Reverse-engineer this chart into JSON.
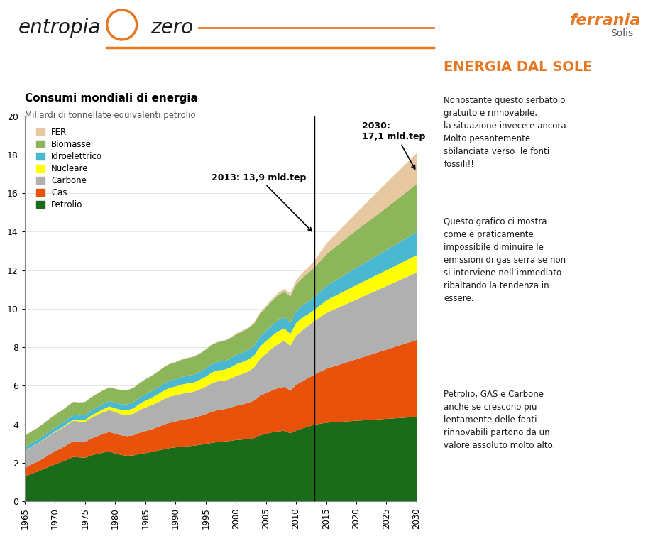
{
  "title": "Consumi mondiali di energia",
  "subtitle": "Miliardi di tonnellate equivalenti petrolio",
  "years": [
    1965,
    1966,
    1967,
    1968,
    1969,
    1970,
    1971,
    1972,
    1973,
    1974,
    1975,
    1976,
    1977,
    1978,
    1979,
    1980,
    1981,
    1982,
    1983,
    1984,
    1985,
    1986,
    1987,
    1988,
    1989,
    1990,
    1991,
    1992,
    1993,
    1994,
    1995,
    1996,
    1997,
    1998,
    1999,
    2000,
    2001,
    2002,
    2003,
    2004,
    2005,
    2006,
    2007,
    2008,
    2009,
    2010,
    2011,
    2012,
    2013,
    2015,
    2020,
    2025,
    2030
  ],
  "petrolio": [
    1.3,
    1.45,
    1.55,
    1.68,
    1.82,
    1.95,
    2.05,
    2.18,
    2.32,
    2.3,
    2.28,
    2.4,
    2.48,
    2.55,
    2.6,
    2.5,
    2.42,
    2.38,
    2.4,
    2.48,
    2.52,
    2.58,
    2.65,
    2.72,
    2.78,
    2.82,
    2.85,
    2.88,
    2.9,
    2.95,
    3.0,
    3.05,
    3.1,
    3.12,
    3.15,
    3.2,
    3.22,
    3.25,
    3.3,
    3.45,
    3.52,
    3.6,
    3.65,
    3.68,
    3.55,
    3.7,
    3.8,
    3.9,
    4.0,
    4.1,
    4.2,
    4.3,
    4.4
  ],
  "gas": [
    0.45,
    0.48,
    0.52,
    0.56,
    0.62,
    0.68,
    0.72,
    0.78,
    0.82,
    0.82,
    0.82,
    0.88,
    0.92,
    0.98,
    1.02,
    1.02,
    1.02,
    1.02,
    1.05,
    1.1,
    1.15,
    1.18,
    1.22,
    1.28,
    1.32,
    1.35,
    1.4,
    1.42,
    1.45,
    1.5,
    1.55,
    1.62,
    1.65,
    1.68,
    1.72,
    1.78,
    1.82,
    1.88,
    1.95,
    2.05,
    2.12,
    2.18,
    2.25,
    2.28,
    2.22,
    2.38,
    2.45,
    2.52,
    2.6,
    2.8,
    3.2,
    3.6,
    4.0
  ],
  "carbone": [
    0.88,
    0.9,
    0.92,
    0.95,
    0.98,
    1.0,
    1.02,
    1.04,
    1.06,
    1.04,
    1.05,
    1.08,
    1.1,
    1.12,
    1.14,
    1.12,
    1.1,
    1.1,
    1.12,
    1.18,
    1.22,
    1.25,
    1.28,
    1.32,
    1.35,
    1.35,
    1.35,
    1.36,
    1.36,
    1.38,
    1.42,
    1.48,
    1.5,
    1.48,
    1.5,
    1.55,
    1.58,
    1.62,
    1.72,
    1.92,
    2.05,
    2.18,
    2.3,
    2.38,
    2.32,
    2.55,
    2.65,
    2.72,
    2.78,
    2.9,
    3.1,
    3.3,
    3.5
  ],
  "nucleare": [
    0.0,
    0.01,
    0.01,
    0.02,
    0.02,
    0.03,
    0.04,
    0.05,
    0.06,
    0.07,
    0.1,
    0.12,
    0.14,
    0.16,
    0.18,
    0.2,
    0.22,
    0.25,
    0.28,
    0.32,
    0.36,
    0.38,
    0.42,
    0.44,
    0.46,
    0.46,
    0.48,
    0.48,
    0.48,
    0.5,
    0.52,
    0.56,
    0.56,
    0.56,
    0.58,
    0.6,
    0.62,
    0.62,
    0.62,
    0.64,
    0.65,
    0.66,
    0.65,
    0.65,
    0.62,
    0.66,
    0.65,
    0.6,
    0.58,
    0.65,
    0.75,
    0.82,
    0.9
  ],
  "idroelettrico": [
    0.18,
    0.19,
    0.19,
    0.2,
    0.21,
    0.21,
    0.22,
    0.23,
    0.24,
    0.24,
    0.25,
    0.26,
    0.27,
    0.28,
    0.28,
    0.29,
    0.3,
    0.3,
    0.31,
    0.32,
    0.33,
    0.34,
    0.35,
    0.36,
    0.37,
    0.38,
    0.39,
    0.4,
    0.4,
    0.41,
    0.43,
    0.44,
    0.45,
    0.46,
    0.47,
    0.48,
    0.49,
    0.5,
    0.51,
    0.52,
    0.54,
    0.56,
    0.57,
    0.58,
    0.59,
    0.62,
    0.64,
    0.65,
    0.68,
    0.75,
    0.9,
    1.05,
    1.2
  ],
  "biomasse": [
    0.6,
    0.61,
    0.62,
    0.63,
    0.64,
    0.65,
    0.66,
    0.67,
    0.68,
    0.68,
    0.68,
    0.69,
    0.7,
    0.7,
    0.71,
    0.72,
    0.73,
    0.74,
    0.75,
    0.76,
    0.78,
    0.8,
    0.82,
    0.85,
    0.87,
    0.88,
    0.9,
    0.92,
    0.93,
    0.95,
    0.98,
    1.0,
    1.02,
    1.04,
    1.06,
    1.08,
    1.1,
    1.12,
    1.15,
    1.18,
    1.22,
    1.26,
    1.3,
    1.33,
    1.35,
    1.4,
    1.44,
    1.48,
    1.52,
    1.65,
    1.95,
    2.2,
    2.5
  ],
  "fer": [
    0.01,
    0.01,
    0.01,
    0.01,
    0.01,
    0.01,
    0.01,
    0.01,
    0.01,
    0.01,
    0.01,
    0.01,
    0.01,
    0.01,
    0.01,
    0.01,
    0.01,
    0.01,
    0.01,
    0.01,
    0.01,
    0.01,
    0.02,
    0.02,
    0.02,
    0.02,
    0.02,
    0.02,
    0.02,
    0.02,
    0.03,
    0.03,
    0.03,
    0.03,
    0.04,
    0.04,
    0.05,
    0.05,
    0.06,
    0.07,
    0.08,
    0.1,
    0.12,
    0.14,
    0.16,
    0.2,
    0.25,
    0.3,
    0.35,
    0.55,
    0.9,
    1.3,
    1.6
  ],
  "colors": {
    "petrolio": "#1a6b1a",
    "gas": "#e8520a",
    "carbone": "#b0b0b0",
    "nucleare": "#ffff00",
    "idroelettrico": "#4ab8d0",
    "biomasse": "#8db55a",
    "fer": "#e8c8a0"
  },
  "labels": {
    "petrolio": "Petrolio",
    "gas": "Gas",
    "carbone": "Carbone",
    "nucleare": "Nucleare",
    "idroelettrico": "Idroelettrico",
    "biomasse": "Biomasse",
    "fer": "FER"
  },
  "ylim": [
    0,
    20
  ],
  "yticks": [
    0,
    2,
    4,
    6,
    8,
    10,
    12,
    14,
    16,
    18,
    20
  ],
  "xticks": [
    1965,
    1970,
    1975,
    1980,
    1985,
    1990,
    1995,
    2000,
    2005,
    2010,
    2015,
    2020,
    2025,
    2030
  ],
  "background_color": "#ffffff",
  "header_bg": "#ffffff",
  "orange_color": "#e87722",
  "header_text_color": "#1a1a1a",
  "right_title": "ENERGIA DAL SOLE",
  "right_title_color": "#e87722",
  "right_text1": "Nonostante questo serbatoio\ngratuito e rinnovabile,\nla situazione invece e ancora\nMolto pesantemente\nsbilanciata verso  le fonti\nfossili!!",
  "right_text2": "Questo grafico ci mostra\ncome è praticamente\nimpossibile diminuire le\nemissioni di gas serra se non\nsi interviene nell’immediato\nribaltando la tendenza in\nessere.",
  "right_text2_highlight": "impossibile diminuire le\nemissioni di gas serra",
  "right_text3": "Petrolio, GAS e Carbone\nanche se crescono più\nlentamente delle fonti\nrinnovabili partono da un\nvalore assoluto molto alto.",
  "entropia_text": "entropia",
  "zero_text": "zero",
  "ferrania_color": "#e87722"
}
